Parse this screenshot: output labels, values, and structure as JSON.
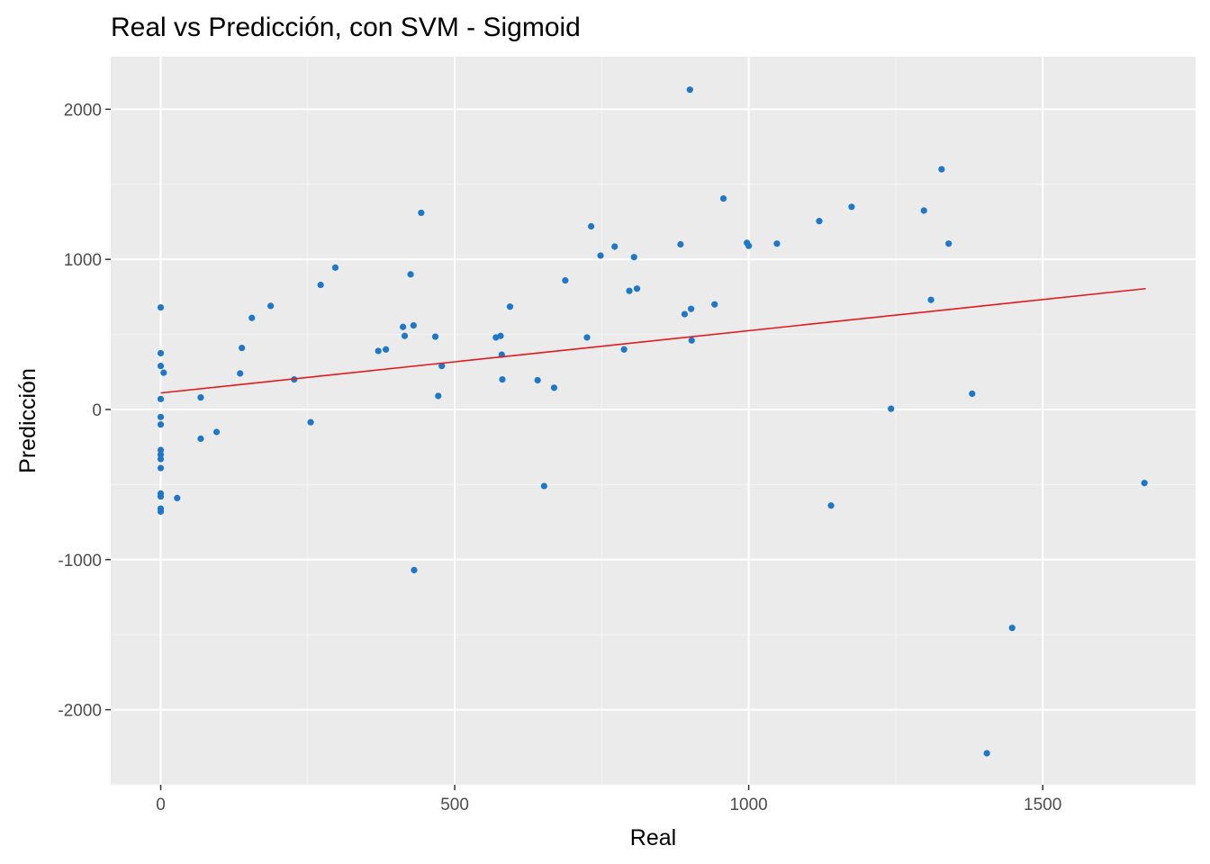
{
  "chart_data": {
    "type": "scatter",
    "title": "Real vs Predicción, con SVM - Sigmoid",
    "xlabel": "Real",
    "ylabel": "Predicción",
    "xlim": [
      -85,
      1760
    ],
    "ylim": [
      -2500,
      2350
    ],
    "x_ticks": [
      0,
      500,
      1000,
      1500
    ],
    "y_ticks": [
      -2000,
      -1000,
      0,
      1000,
      2000
    ],
    "x_tick_labels": [
      "0",
      "500",
      "1000",
      "1500"
    ],
    "y_tick_labels": [
      "-2000",
      "-1000",
      "0",
      "1000",
      "2000"
    ],
    "grid": true,
    "point_color": "#1f77c8",
    "line_color": "#e31a1c",
    "panel_color": "#ebebeb",
    "fit_line": {
      "x": [
        0,
        1675
      ],
      "y": [
        110,
        805
      ]
    },
    "points": [
      {
        "x": 0,
        "y": 680
      },
      {
        "x": 0,
        "y": 375
      },
      {
        "x": 0,
        "y": 290
      },
      {
        "x": 0,
        "y": 70
      },
      {
        "x": 0,
        "y": -50
      },
      {
        "x": 0,
        "y": -100
      },
      {
        "x": 0,
        "y": -270
      },
      {
        "x": 0,
        "y": -300
      },
      {
        "x": 0,
        "y": -330
      },
      {
        "x": 0,
        "y": -390
      },
      {
        "x": 0,
        "y": -560
      },
      {
        "x": 0,
        "y": -580
      },
      {
        "x": 0,
        "y": -660
      },
      {
        "x": 0,
        "y": -680
      },
      {
        "x": 5,
        "y": 245
      },
      {
        "x": 28,
        "y": -590
      },
      {
        "x": 68,
        "y": 80
      },
      {
        "x": 68,
        "y": -195
      },
      {
        "x": 95,
        "y": -150
      },
      {
        "x": 135,
        "y": 240
      },
      {
        "x": 138,
        "y": 410
      },
      {
        "x": 155,
        "y": 610
      },
      {
        "x": 187,
        "y": 690
      },
      {
        "x": 227,
        "y": 200
      },
      {
        "x": 255,
        "y": -85
      },
      {
        "x": 272,
        "y": 830
      },
      {
        "x": 297,
        "y": 945
      },
      {
        "x": 370,
        "y": 390
      },
      {
        "x": 383,
        "y": 400
      },
      {
        "x": 412,
        "y": 550
      },
      {
        "x": 415,
        "y": 490
      },
      {
        "x": 425,
        "y": 900
      },
      {
        "x": 430,
        "y": 560
      },
      {
        "x": 431,
        "y": -1070
      },
      {
        "x": 443,
        "y": 1310
      },
      {
        "x": 467,
        "y": 485
      },
      {
        "x": 472,
        "y": 90
      },
      {
        "x": 478,
        "y": 290
      },
      {
        "x": 570,
        "y": 480
      },
      {
        "x": 578,
        "y": 490
      },
      {
        "x": 580,
        "y": 365
      },
      {
        "x": 581,
        "y": 200
      },
      {
        "x": 594,
        "y": 685
      },
      {
        "x": 641,
        "y": 195
      },
      {
        "x": 652,
        "y": -510
      },
      {
        "x": 669,
        "y": 145
      },
      {
        "x": 688,
        "y": 860
      },
      {
        "x": 725,
        "y": 480
      },
      {
        "x": 732,
        "y": 1220
      },
      {
        "x": 748,
        "y": 1025
      },
      {
        "x": 772,
        "y": 1085
      },
      {
        "x": 788,
        "y": 400
      },
      {
        "x": 797,
        "y": 790
      },
      {
        "x": 805,
        "y": 1015
      },
      {
        "x": 810,
        "y": 805
      },
      {
        "x": 884,
        "y": 1100
      },
      {
        "x": 891,
        "y": 635
      },
      {
        "x": 900,
        "y": 2130
      },
      {
        "x": 902,
        "y": 670
      },
      {
        "x": 903,
        "y": 460
      },
      {
        "x": 942,
        "y": 700
      },
      {
        "x": 957,
        "y": 1405
      },
      {
        "x": 997,
        "y": 1110
      },
      {
        "x": 1000,
        "y": 1090
      },
      {
        "x": 1048,
        "y": 1105
      },
      {
        "x": 1120,
        "y": 1255
      },
      {
        "x": 1140,
        "y": -640
      },
      {
        "x": 1175,
        "y": 1350
      },
      {
        "x": 1242,
        "y": 5
      },
      {
        "x": 1298,
        "y": 1325
      },
      {
        "x": 1310,
        "y": 730
      },
      {
        "x": 1328,
        "y": 1600
      },
      {
        "x": 1340,
        "y": 1105
      },
      {
        "x": 1380,
        "y": 105
      },
      {
        "x": 1405,
        "y": -2290
      },
      {
        "x": 1448,
        "y": -1455
      },
      {
        "x": 1673,
        "y": -490
      }
    ]
  }
}
